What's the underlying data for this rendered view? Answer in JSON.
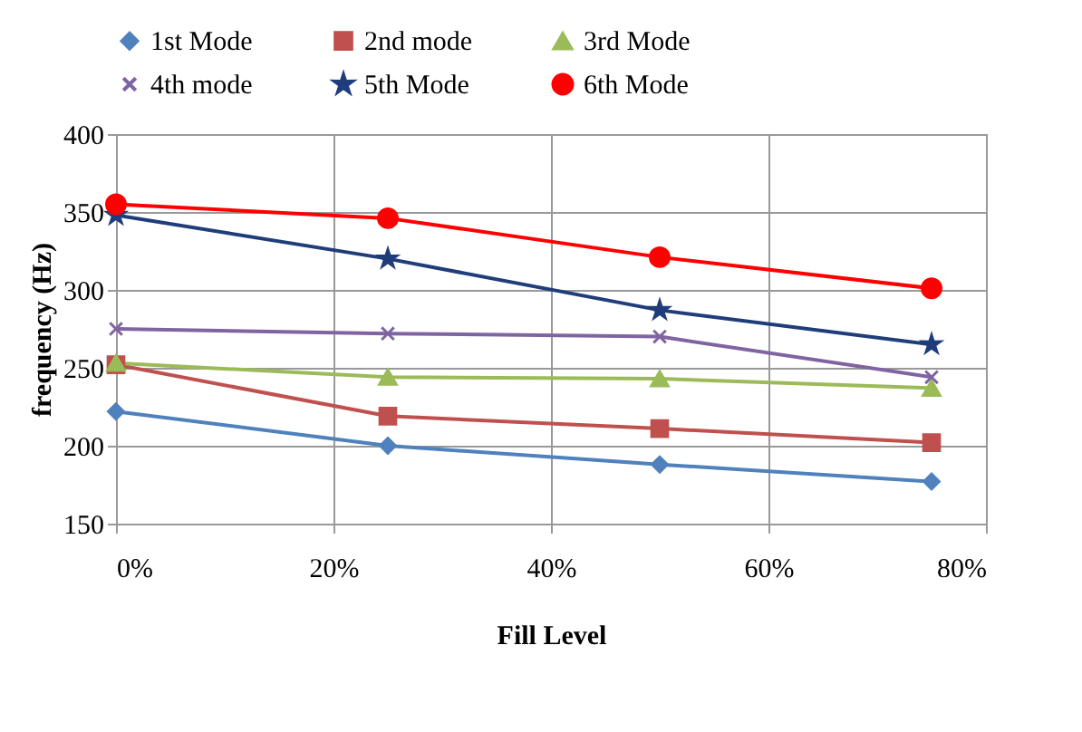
{
  "chart_data": {
    "type": "line",
    "xlabel": "Fill Level",
    "ylabel": "frequency (Hz)",
    "x": [
      0,
      25,
      50,
      75
    ],
    "xlim": [
      0,
      80
    ],
    "xticks": [
      {
        "value": 0,
        "label": "0%"
      },
      {
        "value": 20,
        "label": "20%"
      },
      {
        "value": 40,
        "label": "40%"
      },
      {
        "value": 60,
        "label": "60%"
      },
      {
        "value": 80,
        "label": "80%"
      }
    ],
    "ylim": [
      150,
      400
    ],
    "yticks": [
      150,
      200,
      250,
      300,
      350,
      400
    ],
    "grid": true,
    "legend": "top",
    "line_style": "solid",
    "series": [
      {
        "name": "1st Mode",
        "color": "#4f81bd",
        "marker": "diamond",
        "values": [
          222,
          200,
          188,
          177
        ]
      },
      {
        "name": "2nd mode",
        "color": "#c0504d",
        "marker": "square",
        "values": [
          252,
          219,
          211,
          202
        ]
      },
      {
        "name": "3rd Mode",
        "color": "#9bbb59",
        "marker": "triangle",
        "values": [
          253,
          244,
          243,
          237
        ]
      },
      {
        "name": "4th mode",
        "color": "#8064a2",
        "marker": "cross",
        "values": [
          275,
          272,
          270,
          244
        ]
      },
      {
        "name": "5th Mode",
        "color": "#1f3d7a",
        "marker": "star",
        "values": [
          348,
          320,
          287,
          265
        ]
      },
      {
        "name": "6th Mode",
        "color": "#ff0000",
        "marker": "circle",
        "values": [
          355,
          346,
          321,
          301
        ]
      }
    ]
  }
}
